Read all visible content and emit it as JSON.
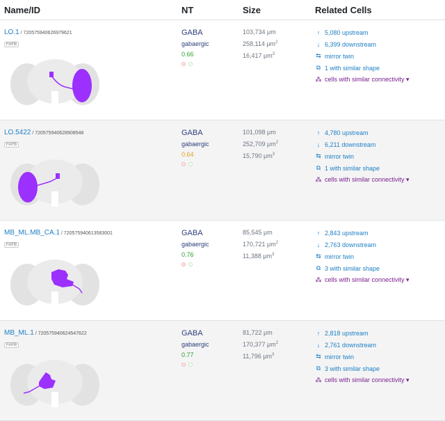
{
  "headers": {
    "name": "Name/ID",
    "nt": "NT",
    "size": "Size",
    "related": "Related Cells"
  },
  "rows": [
    {
      "name": "LO.1",
      "id": " / 720575940626979621",
      "badge": "FAFB",
      "nt": "GABA",
      "nt_sub": "gabaergic",
      "nt_conf": "0.66",
      "conf_color": "#2e9e2e",
      "length": "103,734 μm",
      "area": "258,114 μm",
      "volume": "16,417 μm",
      "up": "5,080 upstream",
      "down": "6,399 downstream",
      "twin": "mirror twin",
      "shape": "1 with similar shape",
      "conn": "cells with similar connectivity ▾",
      "thumb": "right-lobe"
    },
    {
      "name": "LO.5422",
      "id": " / 720575940628908548",
      "badge": "FAFB",
      "nt": "GABA",
      "nt_sub": "gabaergic",
      "nt_conf": "0.64",
      "conf_color": "#e0a21a",
      "length": "101,098 μm",
      "area": "252,709 μm",
      "volume": "15,790 μm",
      "up": "4,780 upstream",
      "down": "6,211 downstream",
      "twin": "mirror twin",
      "shape": "1 with similar shape",
      "conn": "cells with similar connectivity ▾",
      "thumb": "left-lobe"
    },
    {
      "name": "MB_ML.MB_CA.1",
      "id": " / 720575940613583001",
      "badge": "FAFB",
      "nt": "GABA",
      "nt_sub": "gabaergic",
      "nt_conf": "0.76",
      "conf_color": "#2e9e2e",
      "length": "85,545 μm",
      "area": "170,721 μm",
      "volume": "11,388 μm",
      "up": "2,843 upstream",
      "down": "2,763 downstream",
      "twin": "mirror twin",
      "shape": "3 with similar shape",
      "conn": "cells with similar connectivity ▾",
      "thumb": "center-right"
    },
    {
      "name": "MB_ML.1",
      "id": " / 720575940624547622",
      "badge": "FAFB",
      "nt": "GABA",
      "nt_sub": "gabaergic",
      "nt_conf": "0.77",
      "conf_color": "#2e9e2e",
      "length": "81,722 μm",
      "area": "170,377 μm",
      "volume": "11,796 μm",
      "up": "2,818 upstream",
      "down": "2,761 downstream",
      "twin": "mirror twin",
      "shape": "3 with similar shape",
      "conn": "cells with similar connectivity ▾",
      "thumb": "center-left"
    }
  ],
  "superscripts": {
    "area": "2",
    "volume": "3"
  },
  "colors": {
    "link": "#1e7fc4",
    "neuron": "#9b30ff",
    "brain": "#e2e2e2",
    "connectivity": "#7a1f8c"
  }
}
